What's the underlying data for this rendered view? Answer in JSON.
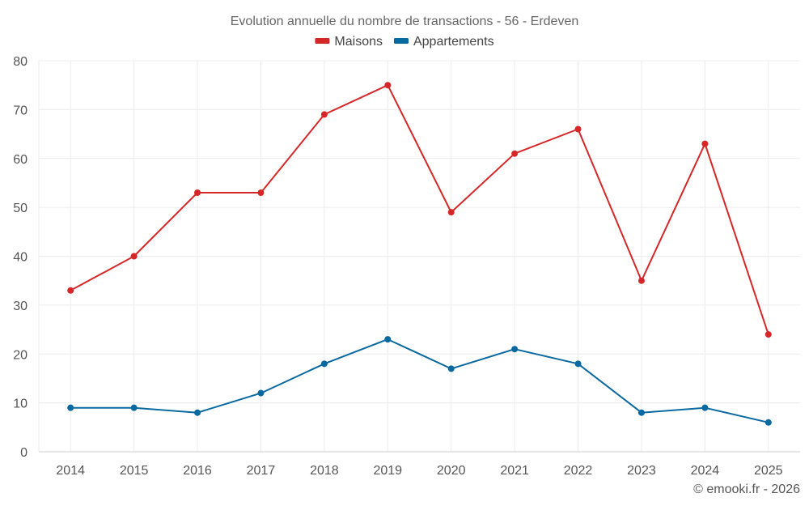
{
  "chart_data": {
    "type": "line",
    "title": "Evolution annuelle du nombre de transactions - 56 - Erdeven",
    "categories": [
      "2014",
      "2015",
      "2016",
      "2017",
      "2018",
      "2019",
      "2020",
      "2021",
      "2022",
      "2023",
      "2024",
      "2025"
    ],
    "series": [
      {
        "name": "Maisons",
        "color": "#d62728",
        "values": [
          33,
          40,
          53,
          53,
          69,
          75,
          49,
          61,
          66,
          35,
          63,
          24
        ]
      },
      {
        "name": "Appartements",
        "color": "#0868a0",
        "values": [
          9,
          9,
          8,
          12,
          18,
          23,
          17,
          21,
          18,
          8,
          9,
          6
        ]
      }
    ],
    "ylim": [
      0,
      80
    ],
    "yticks": [
      0,
      10,
      20,
      30,
      40,
      50,
      60,
      70,
      80
    ],
    "xlabel": "",
    "ylabel": "",
    "grid": true,
    "legend_position": "top-center"
  },
  "credit": "© emooki.fr - 2026"
}
